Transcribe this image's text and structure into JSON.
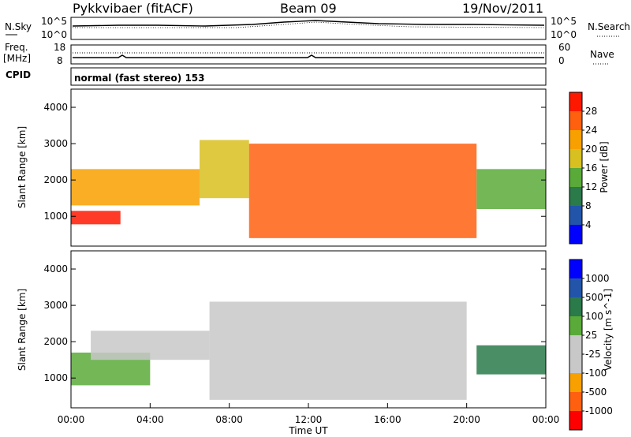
{
  "header": {
    "radar": "Pykkvibaer (fitACF)",
    "beam": "Beam 09",
    "date": "19/Nov/2011"
  },
  "summary_panels": {
    "nsky_label": "N.Sky",
    "nsky_ticks": [
      "10^5",
      "10^0"
    ],
    "nsearch_label": "N.Search",
    "nsearch_ticks": [
      "10^5",
      "10^0"
    ],
    "freq_label": "Freq.",
    "freq_unit": "[MHz]",
    "freq_ticks": [
      "18",
      "8"
    ],
    "nave_label": "Nave",
    "nave_ticks": [
      "60",
      "0"
    ],
    "cpid_label": "CPID",
    "cpid_text": "normal (fast stereo) 153"
  },
  "chart_data": [
    {
      "type": "heatmap",
      "name": "power",
      "ylabel": "Slant Range [km]",
      "ylim": [
        180,
        4500
      ],
      "yticks": [
        1000,
        2000,
        3000,
        4000
      ],
      "xlim_hours": [
        0,
        24
      ],
      "colorbar_label": "Power [dB]",
      "colorbar_ticks": [
        "28",
        "24",
        "20",
        "16",
        "12",
        "8",
        "4"
      ],
      "colorbar_colors": [
        "#0000ff",
        "#2255aa",
        "#2a7a4a",
        "#5aaa3a",
        "#d8c020",
        "#f8a000",
        "#ff6010",
        "#ff1800"
      ],
      "approx_echo_bands": [
        {
          "t0": 0.0,
          "t1": 2.5,
          "r0": 780,
          "r1": 1150,
          "db": 28
        },
        {
          "t0": 0.0,
          "t1": 6.5,
          "r0": 1300,
          "r1": 2300,
          "db": 22
        },
        {
          "t0": 6.5,
          "t1": 9.0,
          "r0": 1500,
          "r1": 3100,
          "db": 18
        },
        {
          "t0": 9.0,
          "t1": 20.5,
          "r0": 400,
          "r1": 3000,
          "db": 24
        },
        {
          "t0": 20.5,
          "t1": 24.0,
          "r0": 1200,
          "r1": 2300,
          "db": 12
        }
      ]
    },
    {
      "type": "heatmap",
      "name": "velocity",
      "ylabel": "Slant Range [km]",
      "ylim": [
        180,
        4500
      ],
      "yticks": [
        1000,
        2000,
        3000,
        4000
      ],
      "xlim_hours": [
        0,
        24
      ],
      "colorbar_label": "Velocity [m s^-1]",
      "colorbar_ticks": [
        "1000",
        "500",
        "100",
        "25",
        "-25",
        "-100",
        "-500",
        "-1000"
      ],
      "colorbar_colors": [
        "#ff0000",
        "#ff6010",
        "#f8a000",
        "#c8c8c8",
        "#c8c8c8",
        "#5aaa3a",
        "#2a7a4a",
        "#2255aa",
        "#0000ff"
      ],
      "approx_echo_bands": [
        {
          "t0": 0.0,
          "t1": 4.0,
          "r0": 800,
          "r1": 1700,
          "v": -100
        },
        {
          "t0": 1.0,
          "t1": 7.0,
          "r0": 1500,
          "r1": 2300,
          "v": 0
        },
        {
          "t0": 7.0,
          "t1": 20.0,
          "r0": 400,
          "r1": 3100,
          "v": 0
        },
        {
          "t0": 20.5,
          "t1": 24.0,
          "r0": 1100,
          "r1": 1900,
          "v": -500
        }
      ]
    }
  ],
  "xaxis": {
    "ticks": [
      "00:00",
      "04:00",
      "08:00",
      "12:00",
      "16:00",
      "20:00",
      "00:00"
    ],
    "label": "Time UT"
  }
}
